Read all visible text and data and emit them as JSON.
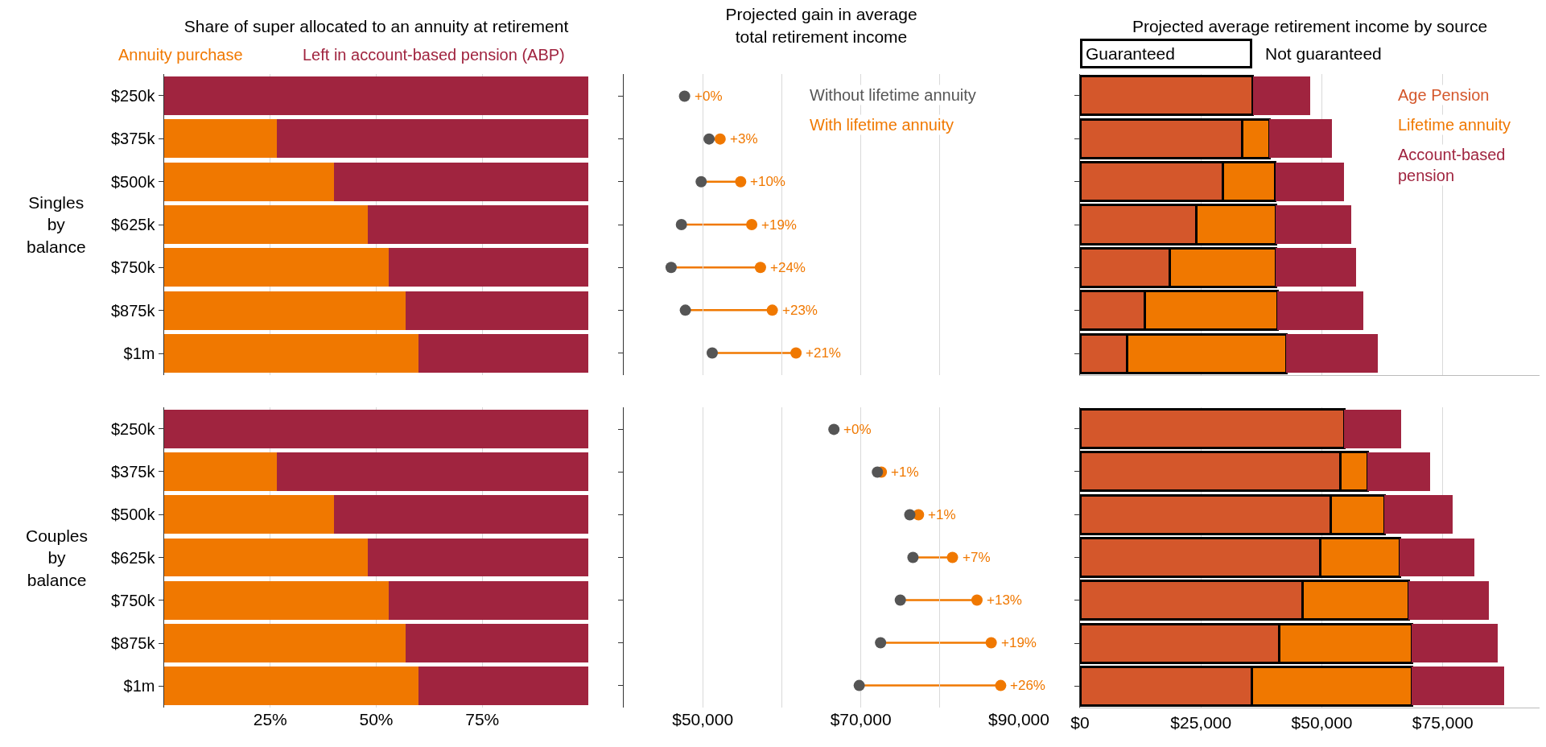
{
  "chart_data": [
    {
      "type": "bar",
      "title": "Share of super allocated to an annuity at retirement",
      "ylabel": "Singles by balance",
      "orientation": "horizontal",
      "stacked": true,
      "legend": "top left",
      "grid": "x",
      "tick_labels": "y",
      "categories": [
        "$250k",
        "$375k",
        "$500k",
        "$625k",
        "$750k",
        "$875k",
        "$1m"
      ],
      "xlim": [
        0,
        100
      ],
      "xticks": [
        {
          "value": 25,
          "label": null
        },
        {
          "value": 50,
          "label": null
        },
        {
          "value": 75,
          "label": null
        }
      ],
      "series": [
        {
          "name": "Annuity purchase",
          "color": "#f07800",
          "values": [
            0,
            26.5,
            40,
            48,
            53,
            57,
            60
          ]
        },
        {
          "name": "Left in account-based pension (ABP)",
          "color": "#a0243f",
          "values": [
            100,
            73.5,
            60,
            52,
            47,
            43,
            40
          ]
        }
      ]
    },
    {
      "type": "scatter",
      "title": "Projected gain in average total retirement income",
      "orientation": "horizontal",
      "legend": "top right",
      "grid": "x",
      "tick_labels": false,
      "marker": "circle",
      "categories": [
        "$250k",
        "$375k",
        "$500k",
        "$625k",
        "$750k",
        "$875k",
        "$1m"
      ],
      "xlim": [
        40000,
        90000
      ],
      "xticks": [
        {
          "value": 50000,
          "label": null
        },
        {
          "value": 60000,
          "label": null
        },
        {
          "value": 70000,
          "label": null
        },
        {
          "value": 80000,
          "label": null
        },
        {
          "value": 90000,
          "label": null
        }
      ],
      "annotations": [
        {
          "text": "+0%",
          "x": 47700,
          "y": "$250k"
        },
        {
          "text": "+3%",
          "x": 52200,
          "y": "$375k"
        },
        {
          "text": "+10%",
          "x": 54800,
          "y": "$500k"
        },
        {
          "text": "+19%",
          "x": 56200,
          "y": "$625k"
        },
        {
          "text": "+24%",
          "x": 57300,
          "y": "$750k"
        },
        {
          "text": "+23%",
          "x": 58800,
          "y": "$875k"
        },
        {
          "text": "+21%",
          "x": 61800,
          "y": "$1m"
        }
      ],
      "series": [
        {
          "name": "Without lifetime annuity",
          "color": "#555555",
          "values": [
            47700,
            50800,
            49800,
            47300,
            46000,
            47800,
            51200
          ]
        },
        {
          "name": "With lifetime annuity",
          "color": "#f07800",
          "values": [
            null,
            52200,
            54800,
            56200,
            57300,
            58800,
            61800
          ]
        }
      ]
    },
    {
      "type": "bar",
      "title": "Projected average retirement income by source",
      "orientation": "horizontal",
      "stacked": true,
      "legend": "top right",
      "grid": "x",
      "tick_labels": false,
      "annotations": [
        "Guaranteed",
        "Not guaranteed"
      ],
      "categories": [
        "$250k",
        "$375k",
        "$500k",
        "$625k",
        "$750k",
        "$875k",
        "$1m"
      ],
      "xlim": [
        0,
        95000
      ],
      "xticks": [
        {
          "value": 0,
          "label": null
        },
        {
          "value": 25000,
          "label": null
        },
        {
          "value": 50000,
          "label": null
        },
        {
          "value": 75000,
          "label": null
        }
      ],
      "series": [
        {
          "name": "Age Pension",
          "color": "#d4572b",
          "values": [
            35700,
            33500,
            29500,
            24100,
            18600,
            13400,
            9700
          ]
        },
        {
          "name": "Lifetime annuity",
          "color": "#f07800",
          "values": [
            0,
            5600,
            10900,
            16400,
            21900,
            27400,
            32900
          ]
        },
        {
          "name": "Account-based pension",
          "color": "#a0243f",
          "values": [
            11800,
            13000,
            14200,
            15500,
            16600,
            17800,
            19000
          ]
        }
      ]
    },
    {
      "type": "bar",
      "ylabel": "Couples by balance",
      "orientation": "horizontal",
      "stacked": true,
      "grid": "x",
      "categories": [
        "$250k",
        "$375k",
        "$500k",
        "$625k",
        "$750k",
        "$875k",
        "$1m"
      ],
      "xlim": [
        0,
        100
      ],
      "xticks": [
        {
          "value": 25,
          "label": "25%"
        },
        {
          "value": 50,
          "label": "50%"
        },
        {
          "value": 75,
          "label": "75%"
        }
      ],
      "series": [
        {
          "color": "#f07800",
          "values": [
            0,
            26.5,
            40,
            48,
            53,
            57,
            60
          ]
        },
        {
          "color": "#a0243f",
          "values": [
            100,
            73.5,
            60,
            52,
            47,
            43,
            40
          ]
        }
      ]
    },
    {
      "type": "scatter",
      "orientation": "horizontal",
      "grid": "x",
      "tick_labels": "x",
      "marker": "circle",
      "categories": [
        "$250k",
        "$375k",
        "$500k",
        "$625k",
        "$750k",
        "$875k",
        "$1m"
      ],
      "xlim": [
        40000,
        90000
      ],
      "xticks": [
        {
          "value": 50000,
          "label": "$50,000"
        },
        {
          "value": 60000,
          "label": null
        },
        {
          "value": 70000,
          "label": "$70,000"
        },
        {
          "value": 80000,
          "label": null
        },
        {
          "value": 90000,
          "label": "$90,000"
        }
      ],
      "annotations": [
        {
          "text": "+0%",
          "x": 66600,
          "y": "$250k"
        },
        {
          "text": "+1%",
          "x": 72600,
          "y": "$375k"
        },
        {
          "text": "+1%",
          "x": 77300,
          "y": "$500k"
        },
        {
          "text": "+7%",
          "x": 81600,
          "y": "$625k"
        },
        {
          "text": "+13%",
          "x": 84700,
          "y": "$750k"
        },
        {
          "text": "+19%",
          "x": 86500,
          "y": "$875k"
        },
        {
          "text": "+26%",
          "x": 87700,
          "y": "$1m"
        }
      ],
      "series": [
        {
          "color": "#555555",
          "values": [
            66600,
            72100,
            76200,
            76600,
            75000,
            72500,
            69800
          ]
        },
        {
          "color": "#f07800",
          "values": [
            null,
            72600,
            77300,
            81600,
            84700,
            86500,
            87700
          ]
        }
      ]
    },
    {
      "type": "bar",
      "orientation": "horizontal",
      "stacked": true,
      "grid": "x",
      "tick_labels": "x",
      "categories": [
        "$250k",
        "$375k",
        "$500k",
        "$625k",
        "$750k",
        "$875k",
        "$1m"
      ],
      "xlim": [
        0,
        95000
      ],
      "xticks": [
        {
          "value": 0,
          "label": "$0"
        },
        {
          "value": 25000,
          "label": "$25,000"
        },
        {
          "value": 50000,
          "label": "$50,000"
        },
        {
          "value": 75000,
          "label": "$75,000"
        }
      ],
      "series": [
        {
          "color": "#d4572b",
          "values": [
            54600,
            53800,
            51900,
            49600,
            46000,
            41100,
            35600
          ]
        },
        {
          "color": "#f07800",
          "values": [
            0,
            5600,
            11000,
            16500,
            21900,
            27500,
            33000
          ]
        },
        {
          "color": "#a0243f",
          "values": [
            11800,
            12900,
            14100,
            15400,
            16600,
            17800,
            19000
          ]
        }
      ]
    }
  ]
}
